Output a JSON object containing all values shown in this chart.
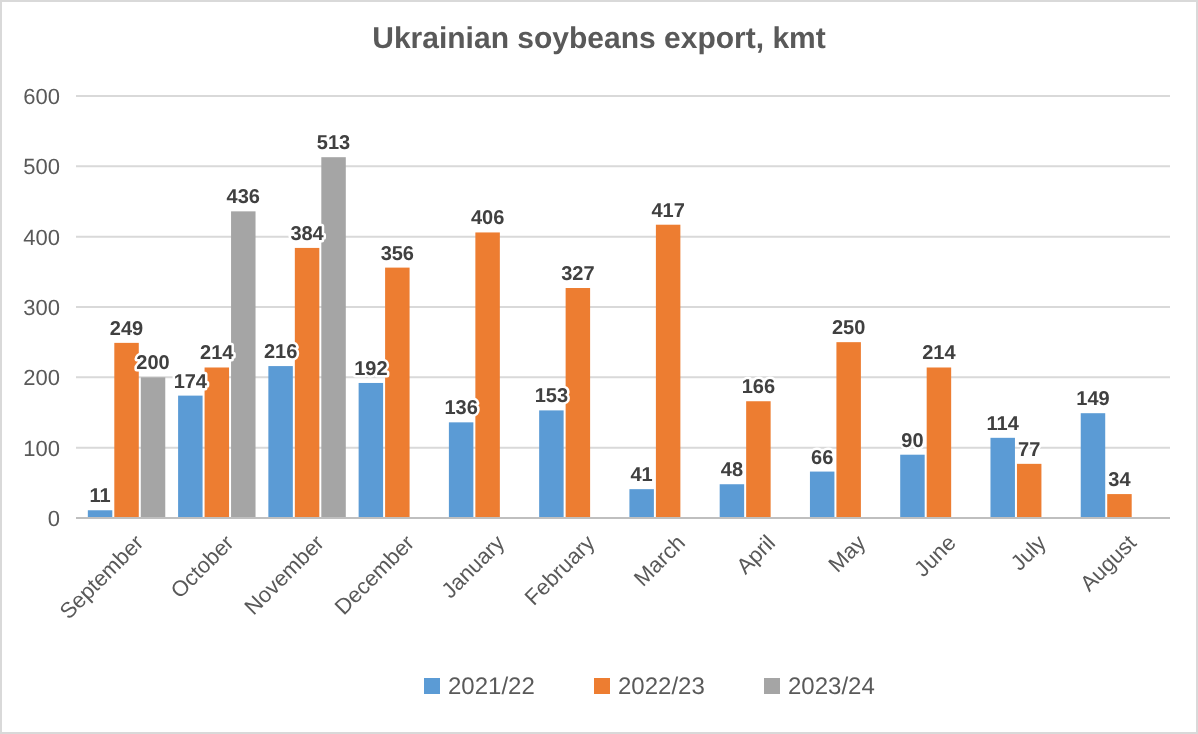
{
  "chart_data": {
    "type": "bar",
    "title": "Ukrainian soybeans export, kmt",
    "categories": [
      "September",
      "October",
      "November",
      "December",
      "January",
      "February",
      "March",
      "April",
      "May",
      "June",
      "July",
      "August"
    ],
    "series": [
      {
        "name": "2021/22",
        "color": "#5b9bd5",
        "values": [
          11,
          174,
          216,
          192,
          136,
          153,
          41,
          48,
          66,
          90,
          114,
          149
        ]
      },
      {
        "name": "2022/23",
        "color": "#ed7d31",
        "values": [
          249,
          214,
          384,
          356,
          406,
          327,
          417,
          166,
          250,
          214,
          77,
          34
        ]
      },
      {
        "name": "2023/24",
        "color": "#a5a5a5",
        "values": [
          200,
          436,
          513,
          null,
          null,
          null,
          null,
          null,
          null,
          null,
          null,
          null
        ]
      }
    ],
    "ylim": [
      0,
      600
    ],
    "yticks": [
      0,
      100,
      200,
      300,
      400,
      500,
      600
    ],
    "grid": true,
    "legend": "bottom",
    "data_labels": true
  }
}
